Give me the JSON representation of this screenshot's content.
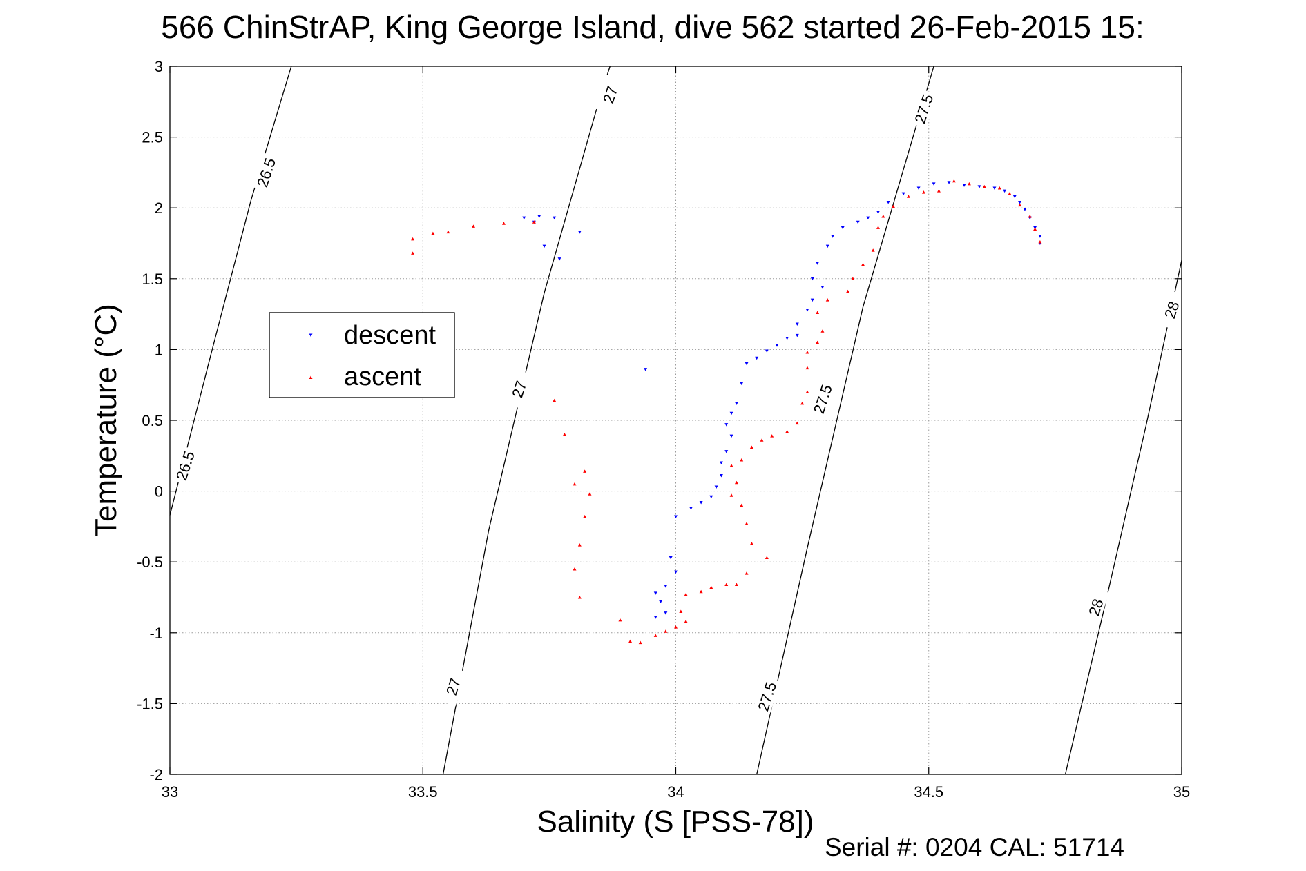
{
  "chart_data": {
    "type": "scatter",
    "title": "566 ChinStrAP, King George Island, dive 562 started 26-Feb-2015 15:",
    "xlabel": "Salinity (S [PSS-78])",
    "ylabel": "Temperature (°C)",
    "xlim": [
      33,
      35
    ],
    "ylim": [
      -2,
      3
    ],
    "x_ticks": [
      "33",
      "33.5",
      "34",
      "34.5",
      "35"
    ],
    "y_ticks": [
      "-2",
      "-1.5",
      "-1",
      "-0.5",
      "0",
      "0.5",
      "1",
      "1.5",
      "2",
      "2.5",
      "3"
    ],
    "grid": true,
    "legend_position": "middle-left",
    "footer": "Serial #: 0204  CAL: 51714",
    "colors": {
      "descent": "#0000ff",
      "ascent": "#ff0000",
      "contour": "#000000",
      "grid": "#9a9a9a"
    },
    "contours": [
      {
        "label": "26.5",
        "points": [
          [
            33.0,
            -0.17
          ],
          [
            33.08,
            0.95
          ],
          [
            33.16,
            2.05
          ],
          [
            33.24,
            3.0
          ]
        ],
        "label_positions": [
          [
            33.19,
            2.25
          ],
          [
            33.03,
            0.18
          ]
        ]
      },
      {
        "label": "27",
        "points": [
          [
            33.54,
            -2.0
          ],
          [
            33.63,
            -0.28
          ],
          [
            33.74,
            1.4
          ],
          [
            33.85,
            2.78
          ],
          [
            33.87,
            3.0
          ]
        ],
        "label_positions": [
          [
            33.87,
            2.8
          ],
          [
            33.69,
            0.72
          ],
          [
            33.56,
            -1.38
          ]
        ]
      },
      {
        "label": "27.5",
        "points": [
          [
            34.16,
            -2.0
          ],
          [
            34.26,
            -0.4
          ],
          [
            34.37,
            1.3
          ],
          [
            34.51,
            3.0
          ]
        ],
        "label_positions": [
          [
            34.49,
            2.7
          ],
          [
            34.29,
            0.65
          ],
          [
            34.18,
            -1.45
          ]
        ]
      },
      {
        "label": "28",
        "points": [
          [
            34.77,
            -2.0
          ],
          [
            34.85,
            -0.78
          ],
          [
            34.93,
            0.47
          ],
          [
            35.0,
            1.63
          ]
        ],
        "label_positions": [
          [
            34.98,
            1.28
          ],
          [
            34.83,
            -0.82
          ]
        ]
      }
    ],
    "series": [
      {
        "name": "descent",
        "points": [
          [
            34.72,
            1.75
          ],
          [
            34.72,
            1.8
          ],
          [
            34.71,
            1.86
          ],
          [
            34.7,
            1.93
          ],
          [
            34.69,
            1.99
          ],
          [
            34.68,
            2.04
          ],
          [
            34.67,
            2.08
          ],
          [
            34.65,
            2.12
          ],
          [
            34.63,
            2.14
          ],
          [
            34.6,
            2.15
          ],
          [
            34.57,
            2.16
          ],
          [
            34.54,
            2.18
          ],
          [
            34.51,
            2.17
          ],
          [
            34.48,
            2.14
          ],
          [
            34.45,
            2.1
          ],
          [
            34.42,
            2.04
          ],
          [
            34.4,
            1.97
          ],
          [
            34.38,
            1.93
          ],
          [
            34.36,
            1.9
          ],
          [
            34.33,
            1.86
          ],
          [
            34.31,
            1.8
          ],
          [
            34.3,
            1.73
          ],
          [
            34.28,
            1.61
          ],
          [
            34.27,
            1.5
          ],
          [
            34.29,
            1.44
          ],
          [
            34.27,
            1.35
          ],
          [
            34.26,
            1.28
          ],
          [
            34.24,
            1.18
          ],
          [
            34.24,
            1.1
          ],
          [
            34.22,
            1.08
          ],
          [
            34.2,
            1.03
          ],
          [
            34.18,
            0.99
          ],
          [
            34.16,
            0.94
          ],
          [
            34.14,
            0.9
          ],
          [
            34.13,
            0.76
          ],
          [
            34.12,
            0.62
          ],
          [
            34.11,
            0.55
          ],
          [
            34.1,
            0.47
          ],
          [
            34.11,
            0.39
          ],
          [
            34.1,
            0.28
          ],
          [
            34.09,
            0.2
          ],
          [
            34.09,
            0.11
          ],
          [
            34.08,
            0.03
          ],
          [
            34.07,
            -0.04
          ],
          [
            34.05,
            -0.08
          ],
          [
            34.03,
            -0.12
          ],
          [
            34.0,
            -0.18
          ],
          [
            33.99,
            -0.47
          ],
          [
            34.0,
            -0.57
          ],
          [
            33.98,
            -0.67
          ],
          [
            33.96,
            -0.72
          ],
          [
            33.97,
            -0.78
          ],
          [
            33.98,
            -0.86
          ],
          [
            33.96,
            -0.89
          ],
          [
            33.94,
            0.86
          ],
          [
            33.73,
            1.94
          ],
          [
            33.72,
            1.9
          ],
          [
            33.74,
            1.73
          ],
          [
            33.77,
            1.64
          ],
          [
            33.81,
            1.83
          ],
          [
            33.76,
            1.93
          ],
          [
            33.7,
            1.93
          ]
        ]
      },
      {
        "name": "ascent",
        "points": [
          [
            34.72,
            1.76
          ],
          [
            34.71,
            1.85
          ],
          [
            34.7,
            1.94
          ],
          [
            34.68,
            2.02
          ],
          [
            34.66,
            2.1
          ],
          [
            34.64,
            2.14
          ],
          [
            34.61,
            2.15
          ],
          [
            34.58,
            2.17
          ],
          [
            34.55,
            2.19
          ],
          [
            34.52,
            2.12
          ],
          [
            34.49,
            2.11
          ],
          [
            34.46,
            2.08
          ],
          [
            34.43,
            2.01
          ],
          [
            34.41,
            1.94
          ],
          [
            34.4,
            1.86
          ],
          [
            34.39,
            1.7
          ],
          [
            34.37,
            1.6
          ],
          [
            34.35,
            1.5
          ],
          [
            34.34,
            1.41
          ],
          [
            34.3,
            1.35
          ],
          [
            34.28,
            1.26
          ],
          [
            34.29,
            1.13
          ],
          [
            34.28,
            1.05
          ],
          [
            34.26,
            0.98
          ],
          [
            34.26,
            0.87
          ],
          [
            34.26,
            0.7
          ],
          [
            34.25,
            0.62
          ],
          [
            34.24,
            0.48
          ],
          [
            34.22,
            0.42
          ],
          [
            34.19,
            0.39
          ],
          [
            34.17,
            0.36
          ],
          [
            34.15,
            0.31
          ],
          [
            34.13,
            0.22
          ],
          [
            34.11,
            0.18
          ],
          [
            34.12,
            0.06
          ],
          [
            34.11,
            -0.03
          ],
          [
            34.13,
            -0.1
          ],
          [
            34.14,
            -0.23
          ],
          [
            34.15,
            -0.37
          ],
          [
            34.18,
            -0.47
          ],
          [
            34.14,
            -0.58
          ],
          [
            34.12,
            -0.66
          ],
          [
            34.1,
            -0.66
          ],
          [
            34.07,
            -0.68
          ],
          [
            34.05,
            -0.71
          ],
          [
            34.02,
            -0.73
          ],
          [
            34.01,
            -0.85
          ],
          [
            34.02,
            -0.92
          ],
          [
            34.0,
            -0.96
          ],
          [
            33.98,
            -0.99
          ],
          [
            33.96,
            -1.02
          ],
          [
            33.93,
            -1.07
          ],
          [
            33.91,
            -1.06
          ],
          [
            33.89,
            -0.91
          ],
          [
            33.83,
            -0.02
          ],
          [
            33.82,
            -0.18
          ],
          [
            33.81,
            -0.38
          ],
          [
            33.8,
            -0.55
          ],
          [
            33.81,
            -0.75
          ],
          [
            33.82,
            0.14
          ],
          [
            33.8,
            0.05
          ],
          [
            33.78,
            0.4
          ],
          [
            33.76,
            0.64
          ],
          [
            33.72,
            1.9
          ],
          [
            33.66,
            1.89
          ],
          [
            33.6,
            1.87
          ],
          [
            33.55,
            1.83
          ],
          [
            33.52,
            1.82
          ],
          [
            33.48,
            1.78
          ],
          [
            33.48,
            1.68
          ]
        ]
      }
    ]
  }
}
